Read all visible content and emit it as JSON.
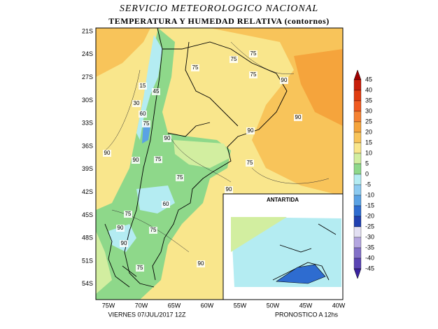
{
  "header": {
    "title": "SERVICIO METEOROLOGICO NACIONAL",
    "subtitle": "TEMPERATURA Y HUMEDAD RELATIVA (contornos)"
  },
  "map": {
    "lat_labels": [
      "21S",
      "24S",
      "27S",
      "30S",
      "33S",
      "36S",
      "39S",
      "42S",
      "45S",
      "48S",
      "51S",
      "54S"
    ],
    "lon_labels": [
      "75W",
      "70W",
      "65W",
      "60W",
      "55W",
      "50W",
      "45W",
      "40W"
    ],
    "contour_labels": [
      "75",
      "75",
      "75",
      "90",
      "90",
      "90",
      "75",
      "15",
      "45",
      "30",
      "60",
      "75",
      "90",
      "90",
      "90",
      "75",
      "75",
      "75",
      "90",
      "60",
      "75",
      "90",
      "75",
      "90",
      "75",
      "90"
    ],
    "inset_title": "ANTARTIDA"
  },
  "colorbar": {
    "ticks": [
      45,
      40,
      35,
      30,
      25,
      20,
      15,
      10,
      5,
      0,
      -5,
      -10,
      -15,
      -20,
      -25,
      -30,
      -35,
      -40,
      -45
    ],
    "colors": [
      "#a00000",
      "#c81e0a",
      "#e03c10",
      "#f05a20",
      "#f58232",
      "#f5a43c",
      "#f8c45a",
      "#f9e68c",
      "#d2eea0",
      "#8ed88a",
      "#b4ecf2",
      "#8ccaf0",
      "#5aa2e4",
      "#2e6cd0",
      "#2040b0",
      "#e2dff2",
      "#b4a6e0",
      "#8270c8",
      "#5a44b4",
      "#3a22a0"
    ]
  },
  "footer": {
    "date": "VIERNES  07/JUL/2017 12Z",
    "forecast": "PRONOSTICO A 12hs"
  }
}
